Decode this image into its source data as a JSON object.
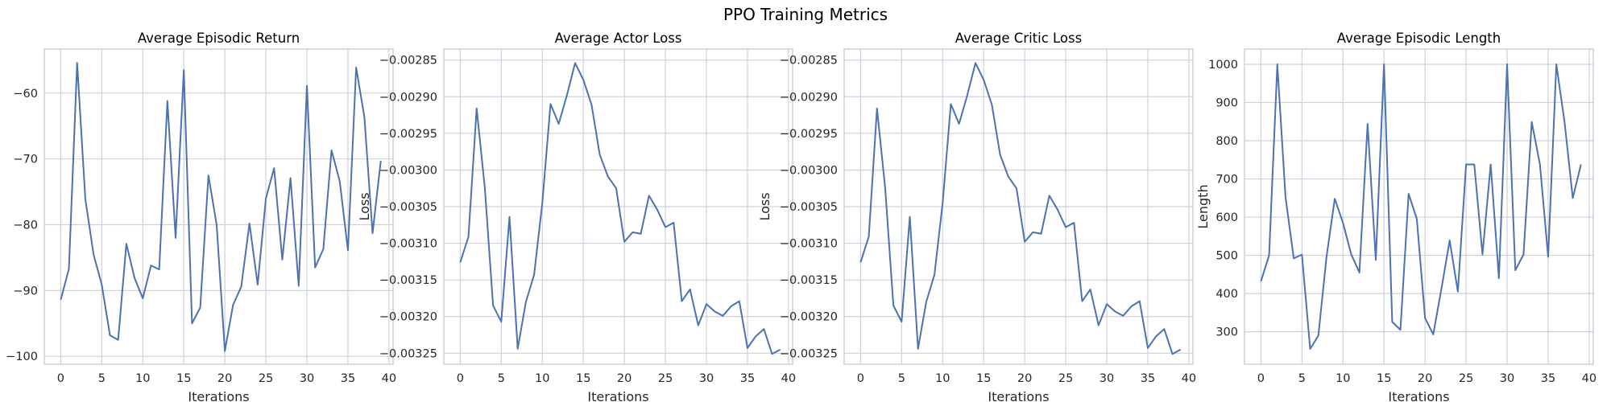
{
  "figure": {
    "title": "PPO Training Metrics"
  },
  "chart_data": [
    {
      "type": "line",
      "title": "Average Episodic Return",
      "xlabel": "Iterations",
      "ylabel": "",
      "xlim": [
        -2,
        40.5
      ],
      "ylim": [
        -101.2,
        -53.3
      ],
      "xticks": [
        0,
        5,
        10,
        15,
        20,
        25,
        30,
        35,
        40
      ],
      "yticks": [
        -100,
        -90,
        -80,
        -70,
        -60
      ],
      "ytick_labels": [
        "−100",
        "−90",
        "−80",
        "−70",
        "−60"
      ],
      "grid": true,
      "color": "#4c72b0",
      "series": [
        {
          "x": [
            0,
            1,
            2,
            3,
            4,
            5,
            6,
            7,
            8,
            9,
            10,
            11,
            12,
            13,
            14,
            15,
            16,
            17,
            18,
            19,
            20,
            21,
            22,
            23,
            24,
            25,
            26,
            27,
            28,
            29,
            30,
            31,
            32,
            33,
            34,
            35,
            36,
            37,
            38,
            39
          ],
          "values": [
            -91.4,
            -86.7,
            -55.4,
            -76.1,
            -84.5,
            -89.1,
            -96.8,
            -97.5,
            -82.9,
            -88.1,
            -91.2,
            -86.2,
            -86.8,
            -61.2,
            -82.0,
            -56.5,
            -95.0,
            -92.6,
            -72.5,
            -80.0,
            -99.2,
            -92.2,
            -89.4,
            -79.8,
            -89.1,
            -76.0,
            -71.4,
            -85.3,
            -72.9,
            -89.3,
            -58.9,
            -86.5,
            -83.7,
            -68.7,
            -73.4,
            -83.9,
            -56.1,
            -63.6,
            -81.3,
            -70.3
          ]
        }
      ]
    },
    {
      "type": "line",
      "title": "Average Actor Loss",
      "xlabel": "Iterations",
      "ylabel": "Loss",
      "xlim": [
        -2,
        40.5
      ],
      "ylim": [
        -0.003265,
        -0.002835
      ],
      "xticks": [
        0,
        5,
        10,
        15,
        20,
        25,
        30,
        35,
        40
      ],
      "yticks": [
        -0.00325,
        -0.0032,
        -0.00315,
        -0.0031,
        -0.00305,
        -0.003,
        -0.00295,
        -0.0029,
        -0.00285
      ],
      "ytick_labels": [
        "−0.00325",
        "−0.00320",
        "−0.00315",
        "−0.00310",
        "−0.00305",
        "−0.00300",
        "−0.00295",
        "−0.00290",
        "−0.00285"
      ],
      "grid": true,
      "color": "#4c72b0",
      "series": [
        {
          "x": [
            0,
            1,
            2,
            3,
            4,
            5,
            6,
            7,
            8,
            9,
            10,
            11,
            12,
            13,
            14,
            15,
            16,
            17,
            18,
            19,
            20,
            21,
            22,
            23,
            24,
            25,
            26,
            27,
            28,
            29,
            30,
            31,
            32,
            33,
            34,
            35,
            36,
            37,
            38,
            39
          ],
          "values": [
            -0.003126,
            -0.003091,
            -0.002916,
            -0.003025,
            -0.003185,
            -0.003207,
            -0.003064,
            -0.003244,
            -0.00318,
            -0.003143,
            -0.003045,
            -0.00291,
            -0.002937,
            -0.002898,
            -0.002854,
            -0.002877,
            -0.002911,
            -0.002979,
            -0.003009,
            -0.003025,
            -0.003098,
            -0.003085,
            -0.003087,
            -0.003035,
            -0.003054,
            -0.003078,
            -0.003072,
            -0.003179,
            -0.003163,
            -0.003212,
            -0.003183,
            -0.003193,
            -0.003199,
            -0.003186,
            -0.003179,
            -0.003243,
            -0.003227,
            -0.003217,
            -0.003251,
            -0.003245
          ]
        }
      ]
    },
    {
      "type": "line",
      "title": "Average Critic Loss",
      "xlabel": "Iterations",
      "ylabel": "Loss",
      "xlim": [
        -2,
        40.5
      ],
      "ylim": [
        -0.003265,
        -0.002835
      ],
      "xticks": [
        0,
        5,
        10,
        15,
        20,
        25,
        30,
        35,
        40
      ],
      "yticks": [
        -0.00325,
        -0.0032,
        -0.00315,
        -0.0031,
        -0.00305,
        -0.003,
        -0.00295,
        -0.0029,
        -0.00285
      ],
      "ytick_labels": [
        "−0.00325",
        "−0.00320",
        "−0.00315",
        "−0.00310",
        "−0.00305",
        "−0.00300",
        "−0.00295",
        "−0.00290",
        "−0.00285"
      ],
      "grid": true,
      "color": "#4c72b0",
      "series": [
        {
          "x": [
            0,
            1,
            2,
            3,
            4,
            5,
            6,
            7,
            8,
            9,
            10,
            11,
            12,
            13,
            14,
            15,
            16,
            17,
            18,
            19,
            20,
            21,
            22,
            23,
            24,
            25,
            26,
            27,
            28,
            29,
            30,
            31,
            32,
            33,
            34,
            35,
            36,
            37,
            38,
            39
          ],
          "values": [
            -0.003126,
            -0.003091,
            -0.002916,
            -0.003025,
            -0.003185,
            -0.003207,
            -0.003064,
            -0.003244,
            -0.00318,
            -0.003143,
            -0.003045,
            -0.00291,
            -0.002937,
            -0.002898,
            -0.002854,
            -0.002877,
            -0.002911,
            -0.002979,
            -0.003009,
            -0.003025,
            -0.003098,
            -0.003085,
            -0.003087,
            -0.003035,
            -0.003054,
            -0.003078,
            -0.003072,
            -0.003179,
            -0.003163,
            -0.003212,
            -0.003183,
            -0.003193,
            -0.003199,
            -0.003186,
            -0.003179,
            -0.003243,
            -0.003227,
            -0.003217,
            -0.003251,
            -0.003245
          ]
        }
      ]
    },
    {
      "type": "line",
      "title": "Average Episodic Length",
      "xlabel": "Iterations",
      "ylabel": "Length",
      "xlim": [
        -2,
        40.5
      ],
      "ylim": [
        215,
        1040
      ],
      "xticks": [
        0,
        5,
        10,
        15,
        20,
        25,
        30,
        35,
        40
      ],
      "yticks": [
        300,
        400,
        500,
        600,
        700,
        800,
        900,
        1000
      ],
      "ytick_labels": [
        "300",
        "400",
        "500",
        "600",
        "700",
        "800",
        "900",
        "1000"
      ],
      "grid": true,
      "color": "#4c72b0",
      "series": [
        {
          "x": [
            0,
            1,
            2,
            3,
            4,
            5,
            6,
            7,
            8,
            9,
            10,
            11,
            12,
            13,
            14,
            15,
            16,
            17,
            18,
            19,
            20,
            21,
            22,
            23,
            24,
            25,
            26,
            27,
            28,
            29,
            30,
            31,
            32,
            33,
            34,
            35,
            36,
            37,
            38,
            39
          ],
          "values": [
            432,
            500,
            1000,
            652,
            492,
            502,
            255,
            290,
            497,
            648,
            585,
            503,
            455,
            844,
            488,
            1000,
            326,
            305,
            661,
            595,
            336,
            293,
            413,
            539,
            405,
            738,
            738,
            502,
            738,
            440,
            1000,
            461,
            502,
            849,
            738,
            496,
            1000,
            849,
            650,
            738
          ]
        }
      ]
    }
  ]
}
